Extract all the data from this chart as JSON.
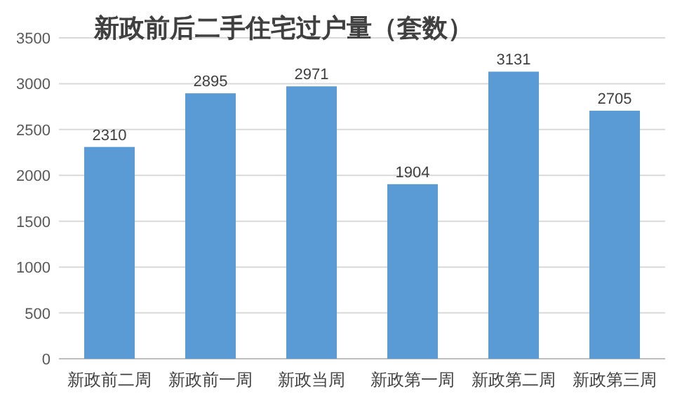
{
  "chart_data": {
    "type": "bar",
    "title": "新政前后二手住宅过户量（套数）",
    "categories": [
      "新政前二周",
      "新政前一周",
      "新政当周",
      "新政第一周",
      "新政第二周",
      "新政第三周"
    ],
    "values": [
      2310,
      2895,
      2971,
      1904,
      3131,
      2705
    ],
    "color": "#5b9bd5",
    "ylim": [
      0,
      3500
    ],
    "yticks": [
      0,
      500,
      1000,
      1500,
      2000,
      2500,
      3000,
      3500
    ],
    "grid": "y",
    "data_labels": true
  }
}
